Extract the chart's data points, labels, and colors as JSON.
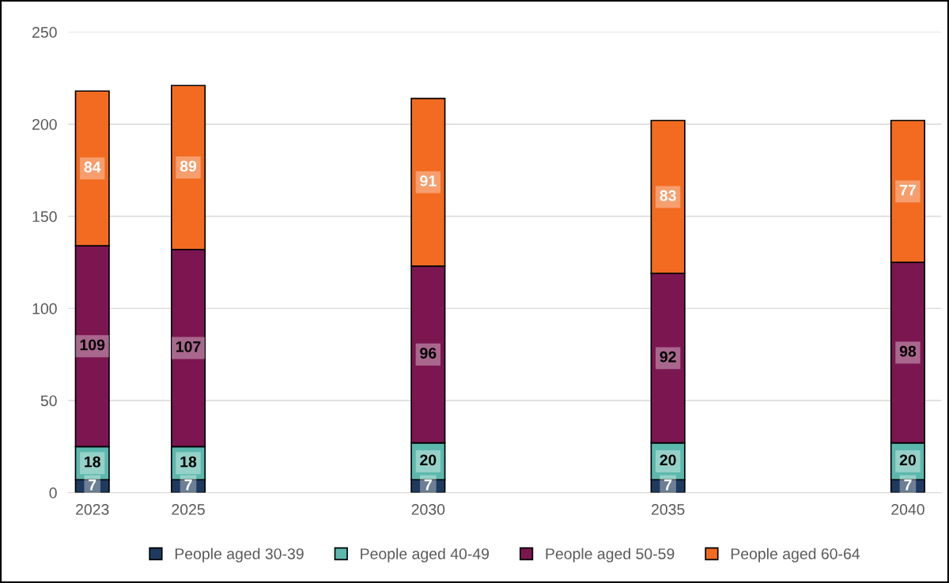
{
  "chart_data": {
    "type": "bar",
    "stacked": true,
    "x": [
      2023,
      2025,
      2030,
      2035,
      2040
    ],
    "series": [
      {
        "name": "People aged 30-39",
        "color": "#1f3a5f",
        "values": [
          7,
          7,
          7,
          7,
          7
        ]
      },
      {
        "name": "People aged 40-49",
        "color": "#5cb8ad",
        "values": [
          18,
          18,
          20,
          20,
          20
        ]
      },
      {
        "name": "People aged 50-59",
        "color": "#7b1650",
        "values": [
          109,
          107,
          96,
          92,
          98
        ]
      },
      {
        "name": "People aged 60-64",
        "color": "#f26b21",
        "values": [
          84,
          89,
          91,
          83,
          77
        ]
      }
    ],
    "xlim": [
      2022.5,
      2040.7
    ],
    "xticks": [
      2023,
      2025,
      2030,
      2035,
      2040
    ],
    "ylim": [
      0,
      250
    ],
    "yticks": [
      0,
      50,
      100,
      150,
      200,
      250
    ],
    "grid": "y",
    "legend": "bottom",
    "data_labels": true
  }
}
